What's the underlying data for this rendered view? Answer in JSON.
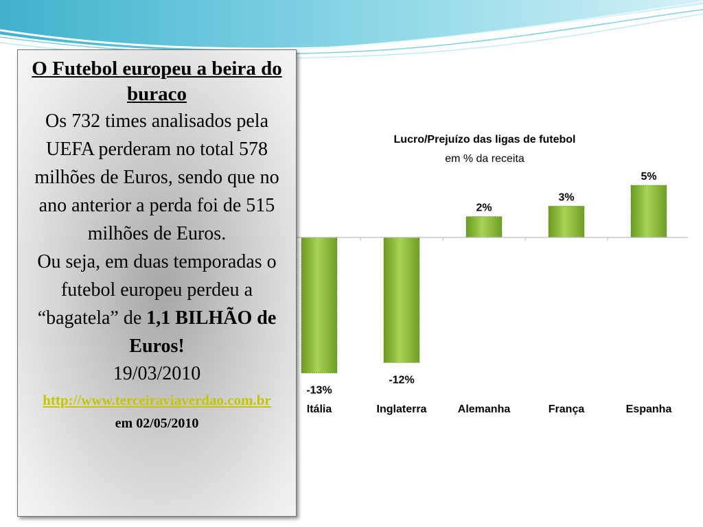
{
  "panel": {
    "title": "O Futebol europeu a beira do buraco",
    "paragraph1": "Os 732 times analisados pela UEFA perderam no total 578 milhões de Euros, sendo que no ano anterior a perda foi de 515 milhões de Euros.",
    "paragraph2_start": "Ou seja, em duas temporadas o futebol europeu perdeu a “bagatela” de ",
    "paragraph2_bold": "1,1 BILHÃO de Euros!",
    "date": "19/03/2010",
    "link": "http://www.terceiraviaverdao.com.br",
    "accessed": "em 02/05/2010"
  },
  "colors": {
    "bar": "#8ab83a",
    "link": "#c5c500",
    "panel_border": "#6f6f6f"
  },
  "chart_data": {
    "type": "bar",
    "title": "Lucro/Prejuízo das ligas de futebol",
    "subtitle": "em % da receita",
    "categories": [
      "Itália",
      "Inglaterra",
      "Alemanha",
      "França",
      "Espanha"
    ],
    "values": [
      -13,
      -12,
      2,
      3,
      5
    ],
    "data_labels": [
      "-13%",
      "-12%",
      "2%",
      "3%",
      "5%"
    ],
    "ylim": [
      -13,
      5
    ],
    "grid": false,
    "legend": "none"
  }
}
